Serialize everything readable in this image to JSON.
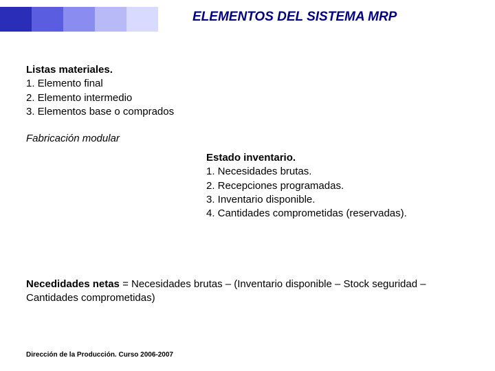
{
  "header": {
    "title": "ELEMENTOS DEL SISTEMA MRP",
    "blocks": [
      {
        "color": "#2a2db8",
        "width": 46
      },
      {
        "color": "#5a5de0",
        "width": 46
      },
      {
        "color": "#8a8cf0",
        "width": 46
      },
      {
        "color": "#b8baf8",
        "width": 46
      },
      {
        "color": "#d8daff",
        "width": 46
      }
    ]
  },
  "listas": {
    "heading": "Listas materiales.",
    "items": [
      "1.  Elemento final",
      "2.  Elemento intermedio",
      "3.  Elementos base o comprados"
    ]
  },
  "fabricacion": {
    "text": "Fabricación modular"
  },
  "estado": {
    "heading": "Estado inventario.",
    "items": [
      "1.  Necesidades brutas.",
      "2.  Recepciones programadas.",
      "3.  Inventario disponible.",
      "4.  Cantidades comprometidas (reservadas)."
    ]
  },
  "formula": {
    "bold_part": "Necedidades netas",
    "rest": " = Necesidades brutas – (Inventario disponible – Stock seguridad – Cantidades comprometidas)"
  },
  "footer": {
    "text": "Dirección de la Producción. Curso 2006-2007"
  }
}
